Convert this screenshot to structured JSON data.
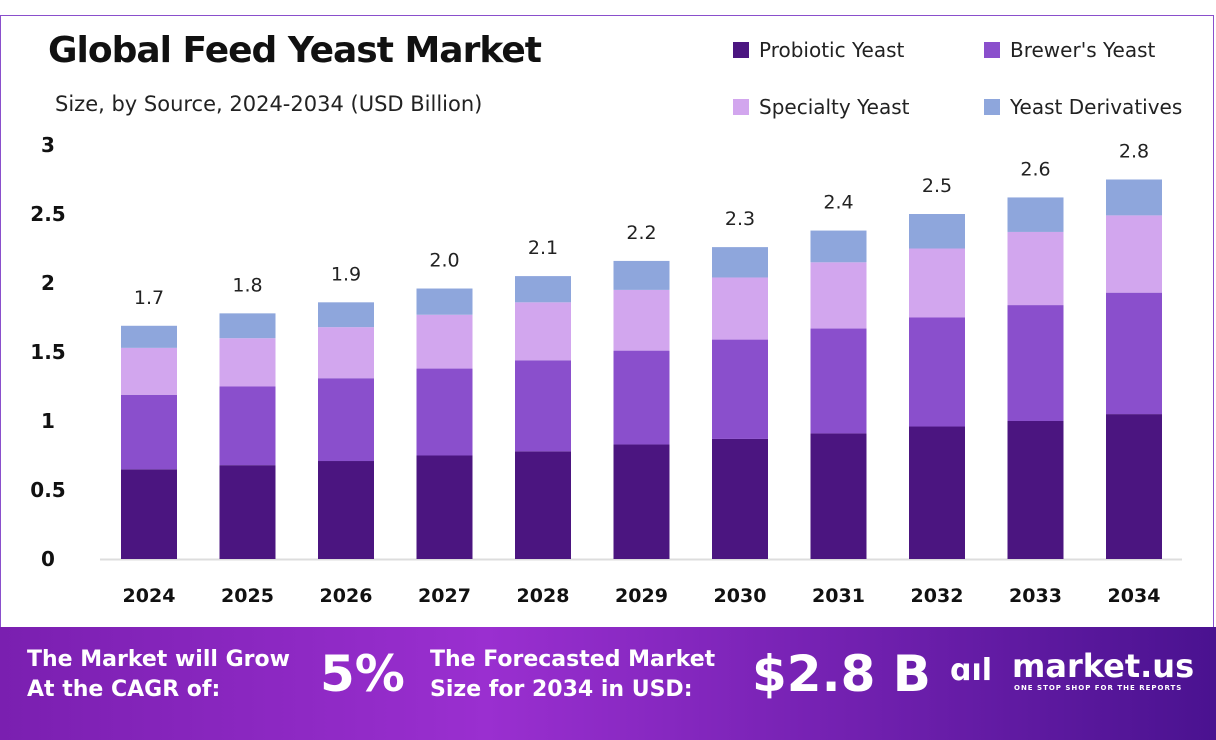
{
  "chart_data": {
    "type": "bar",
    "stacked": true,
    "title": "Global Feed Yeast Market",
    "subtitle": "Size, by Source, 2024-2034 (USD Billion)",
    "categories": [
      "2024",
      "2025",
      "2026",
      "2027",
      "2028",
      "2029",
      "2030",
      "2031",
      "2032",
      "2033",
      "2034"
    ],
    "series": [
      {
        "name": "Probiotic Yeast",
        "color": "#4b1580",
        "values": [
          0.65,
          0.68,
          0.71,
          0.75,
          0.78,
          0.83,
          0.87,
          0.91,
          0.96,
          1.0,
          1.05
        ]
      },
      {
        "name": "Brewer's Yeast",
        "color": "#8a4fcc",
        "values": [
          0.54,
          0.57,
          0.6,
          0.63,
          0.66,
          0.68,
          0.72,
          0.76,
          0.79,
          0.84,
          0.88
        ]
      },
      {
        "name": "Specialty Yeast",
        "color": "#d2a6ee",
        "values": [
          0.34,
          0.35,
          0.37,
          0.39,
          0.42,
          0.44,
          0.45,
          0.48,
          0.5,
          0.53,
          0.56
        ]
      },
      {
        "name": "Yeast Derivatives",
        "color": "#8ea6dc",
        "values": [
          0.16,
          0.18,
          0.18,
          0.19,
          0.19,
          0.21,
          0.22,
          0.23,
          0.25,
          0.25,
          0.26
        ]
      }
    ],
    "totals": [
      "1.7",
      "1.8",
      "1.9",
      "2.0",
      "2.1",
      "2.2",
      "2.3",
      "2.4",
      "2.5",
      "2.6",
      "2.8"
    ],
    "yticks": [
      "0",
      "0.5",
      "1",
      "1.5",
      "2",
      "2.5",
      "3"
    ],
    "ylim": [
      0,
      3
    ],
    "grid": false,
    "legend": "top-right"
  },
  "footer": {
    "cagr_label_1": "The Market will Grow",
    "cagr_label_2": "At the CAGR of:",
    "cagr_value": "5%",
    "forecast_label_1": "The Forecasted Market",
    "forecast_label_2": "Size for 2034 in USD:",
    "forecast_value": "$2.8 B",
    "logo_text": "market.us",
    "logo_tagline": "ONE STOP SHOP FOR THE REPORTS"
  }
}
